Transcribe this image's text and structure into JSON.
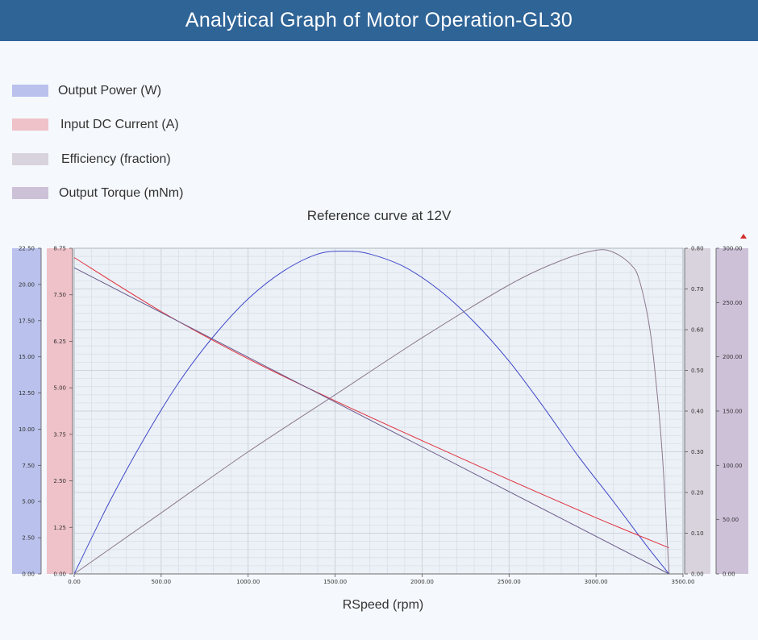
{
  "header": {
    "title": "Analytical Graph of Motor Operation-GL30"
  },
  "legend": [
    {
      "label": "Output Power (W)",
      "color": "#b9c1ec"
    },
    {
      "label": "Input DC Current (A)",
      "color": "#efc1c9"
    },
    {
      "label": "Efficiency (fraction)",
      "color": "#d8d3dc"
    },
    {
      "label": "Output Torque (mNm)",
      "color": "#cdc1d8"
    }
  ],
  "chart_data": {
    "type": "line",
    "title": "Reference curve at 12V",
    "xlabel": "RSpeed (rpm)",
    "xlim": [
      0,
      3500
    ],
    "x_ticks": [
      "0.00",
      "500.00",
      "1000.00",
      "1500.00",
      "2000.00",
      "2500.00",
      "3000.00",
      "3500.00"
    ],
    "axes": {
      "power": {
        "min": 0,
        "max": 22.5,
        "ticks": [
          "0.00",
          "2.50",
          "5.00",
          "7.50",
          "10.00",
          "12.50",
          "15.00",
          "17.50",
          "20.00",
          "22.50"
        ]
      },
      "current": {
        "min": 0,
        "max": 8.75,
        "ticks": [
          "0.00",
          "1.25",
          "2.50",
          "3.75",
          "5.00",
          "6.25",
          "7.50",
          "8.75"
        ]
      },
      "efficiency": {
        "min": 0,
        "max": 0.8,
        "ticks": [
          "0.00",
          "0.10",
          "0.20",
          "0.30",
          "0.40",
          "0.50",
          "0.60",
          "0.70",
          "0.80"
        ]
      },
      "torque": {
        "min": 0,
        "max": 300,
        "ticks": [
          "0.00",
          "50.00",
          "100.00",
          "150.00",
          "200.00",
          "250.00",
          "300.00"
        ]
      }
    },
    "series": [
      {
        "name": "Output Power (W)",
        "axis": "power",
        "color": "#3e48c8",
        "x": [
          0,
          200,
          400,
          600,
          800,
          1000,
          1200,
          1400,
          1560,
          1700,
          1900,
          2100,
          2300,
          2500,
          2700,
          2900,
          3100,
          3300,
          3420
        ],
        "y": [
          0,
          4.9,
          9.3,
          13.2,
          16.4,
          19.0,
          20.9,
          22.1,
          22.3,
          22.1,
          21.2,
          19.6,
          17.4,
          14.7,
          11.5,
          8.1,
          5.0,
          1.8,
          0
        ]
      },
      {
        "name": "Input DC Current (A)",
        "axis": "current",
        "color": "#e0303c",
        "x": [
          0,
          500,
          1000,
          1500,
          2000,
          2500,
          3000,
          3420
        ],
        "y": [
          8.5,
          7.05,
          5.78,
          4.65,
          3.58,
          2.53,
          1.51,
          0.7
        ]
      },
      {
        "name": "Efficiency (fraction)",
        "axis": "efficiency",
        "color": "#8c788e",
        "x": [
          0,
          500,
          1000,
          1500,
          2000,
          2500,
          2800,
          3000,
          3100,
          3200,
          3250,
          3310,
          3350,
          3380,
          3405,
          3420
        ],
        "y": [
          0,
          0.15,
          0.3,
          0.44,
          0.58,
          0.71,
          0.77,
          0.795,
          0.79,
          0.76,
          0.72,
          0.6,
          0.45,
          0.3,
          0.12,
          0
        ]
      },
      {
        "name": "Output Torque (mNm)",
        "axis": "torque",
        "color": "#6a5a8a",
        "x": [
          0,
          3420
        ],
        "y": [
          282,
          0
        ]
      }
    ]
  }
}
